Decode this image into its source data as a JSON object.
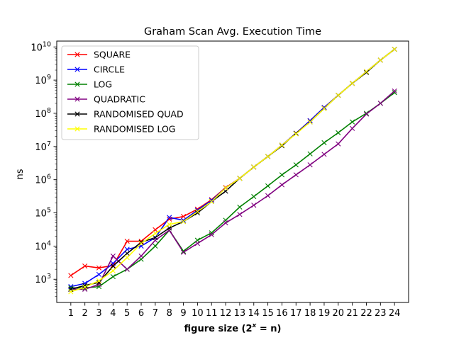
{
  "chart_data": {
    "type": "line",
    "title": "Graham Scan Avg. Execution Time",
    "xlabel": "figure size (2",
    "xlabel_sup": "x",
    "xlabel_tail": " = n)",
    "ylabel": "ns",
    "yscale": "log",
    "ylim": [
      200,
      15000000000
    ],
    "xlim": [
      0.0,
      25.0
    ],
    "legend_position": "upper-left",
    "grid": false,
    "x": [
      1,
      2,
      3,
      4,
      5,
      6,
      7,
      8,
      9,
      10,
      11,
      12,
      13,
      14,
      15,
      16,
      17,
      18,
      19,
      20,
      21,
      22,
      23,
      24
    ],
    "x_tick_labels": [
      "1",
      "2",
      "3",
      "4",
      "5",
      "6",
      "7",
      "8",
      "9",
      "10",
      "11",
      "12",
      "13",
      "14",
      "15",
      "16",
      "17",
      "18",
      "19",
      "20",
      "21",
      "22",
      "23",
      "24"
    ],
    "y_ticks": [
      {
        "base": "10",
        "exp": "3",
        "value": 1000
      },
      {
        "base": "10",
        "exp": "4",
        "value": 10000
      },
      {
        "base": "10",
        "exp": "5",
        "value": 100000
      },
      {
        "base": "10",
        "exp": "6",
        "value": 1000000
      },
      {
        "base": "10",
        "exp": "7",
        "value": 10000000
      },
      {
        "base": "10",
        "exp": "8",
        "value": 100000000
      },
      {
        "base": "10",
        "exp": "9",
        "value": 1000000000
      },
      {
        "base": "10",
        "exp": "10",
        "value": 10000000000
      }
    ],
    "series": [
      {
        "name": "SQUARE",
        "color": "#ff0000",
        "values": [
          1300,
          2500,
          2200,
          2600,
          14000,
          14000,
          31000,
          65000,
          78000,
          130000,
          250000,
          580000,
          1100000,
          2400000,
          5000000,
          11000000,
          25000000,
          60000000,
          150000000,
          350000000,
          800000000,
          1800000000,
          4000000000,
          8500000000
        ]
      },
      {
        "name": "CIRCLE",
        "color": "#0000ff",
        "values": [
          600,
          750,
          1400,
          3000,
          8000,
          10000,
          18000,
          73000,
          60000,
          120000,
          240000,
          560000,
          1100000,
          2400000,
          5000000,
          11000000,
          25000000,
          60000000,
          150000000,
          350000000,
          800000000,
          1800000000,
          4000000000,
          8500000000
        ]
      },
      {
        "name": "LOG",
        "color": "#008000",
        "values": [
          550,
          550,
          600,
          1200,
          2000,
          4000,
          10000,
          30000,
          7000,
          15000,
          25000,
          60000,
          150000,
          310000,
          650000,
          1400000,
          2800000,
          6000000,
          13000000,
          26000000,
          55000000,
          100000000,
          200000000,
          420000000
        ]
      },
      {
        "name": "QUADRATIC",
        "color": "#800080",
        "values": [
          500,
          500,
          700,
          5000,
          2000,
          5000,
          15000,
          30000,
          6500,
          12000,
          22000,
          50000,
          90000,
          170000,
          330000,
          700000,
          1400000,
          2800000,
          5800000,
          12000000,
          35000000,
          95000000,
          200000000,
          470000000
        ]
      },
      {
        "name": "RANDOMISED QUAD",
        "color": "#000000",
        "values": [
          500,
          650,
          800,
          2500,
          6000,
          13000,
          18000,
          35000,
          55000,
          100000,
          220000,
          450000,
          1100000,
          2400000,
          5000000,
          10500000,
          25000000,
          55000000,
          140000000,
          350000000,
          800000000,
          1700000000,
          4000000000,
          8500000000
        ]
      },
      {
        "name": "RANDOMISED LOG",
        "color": "#ffff00",
        "values": [
          420,
          580,
          900,
          1800,
          4500,
          12000,
          24000,
          45000,
          55000,
          110000,
          220000,
          560000,
          1100000,
          2400000,
          5000000,
          11000000,
          24000000,
          55000000,
          140000000,
          350000000,
          800000000,
          1800000000,
          4000000000,
          8500000000
        ]
      }
    ]
  }
}
